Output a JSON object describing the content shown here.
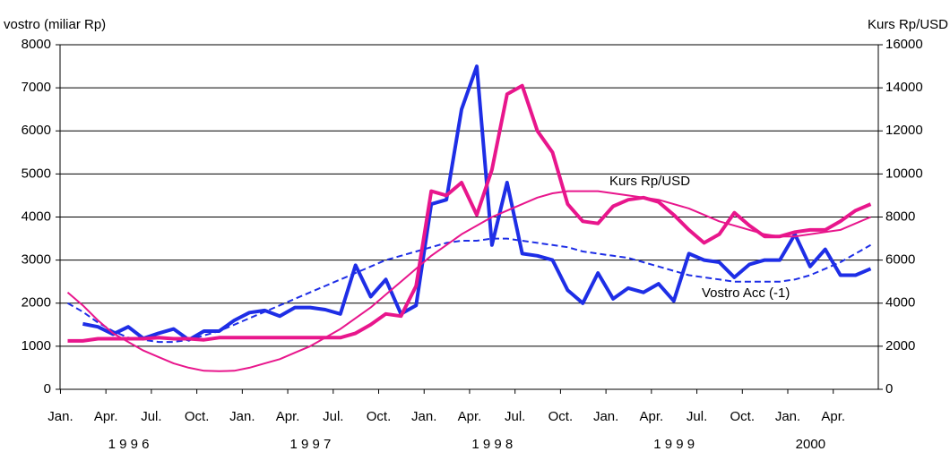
{
  "chart_data": {
    "type": "line",
    "y_label": "vostro (miliar Rp)",
    "y2_label": "Kurs Rp/USD",
    "categories": [
      "Jan.",
      null,
      null,
      "Apr.",
      null,
      null,
      "Jul.",
      null,
      null,
      "Oct.",
      null,
      null,
      "Jan.",
      null,
      null,
      "Apr.",
      null,
      null,
      "Jul.",
      null,
      null,
      "Oct.",
      null,
      null,
      "Jan.",
      null,
      null,
      "Apr.",
      null,
      null,
      "Jul.",
      null,
      null,
      "Oct.",
      null,
      null,
      "Jan.",
      null,
      null,
      "Apr.",
      null,
      null,
      "Jul.",
      null,
      null,
      "Oct.",
      null,
      null,
      "Jan.",
      null,
      null,
      "Apr.",
      null,
      null
    ],
    "years": [
      "1 9 9 6",
      "1 9 9 7",
      "1 9 9 8",
      "1 9 9 9",
      "2000"
    ],
    "ylim": [
      0,
      8000
    ],
    "yticks": [
      0,
      1000,
      2000,
      3000,
      4000,
      5000,
      6000,
      7000,
      8000
    ],
    "y2lim": [
      0,
      16000
    ],
    "y2ticks": [
      0,
      2000,
      4000,
      6000,
      8000,
      10000,
      12000,
      14000,
      16000
    ],
    "grid": true,
    "series": [
      {
        "color": "#1e2ee6",
        "width": 4,
        "dash": false,
        "values": [
          null,
          1520,
          1450,
          1280,
          1450,
          1180,
          1300,
          1400,
          1150,
          1350,
          1350,
          1600,
          1780,
          1830,
          1700,
          1900,
          1900,
          1850,
          1750,
          2880,
          2150,
          2550,
          1750,
          1950,
          4300,
          4400,
          6500,
          7500,
          3350,
          4800,
          3150,
          3100,
          3000,
          2300,
          2000,
          2700,
          2100,
          2350,
          2250,
          2450,
          2050,
          3150,
          3000,
          2950,
          2600,
          2900,
          3000,
          3000,
          3600,
          2850,
          3250,
          2650,
          2650,
          2800
        ]
      },
      {
        "name": "Vostro Acc (-1)",
        "color": "#1e2ee6",
        "width": 2,
        "dash": true,
        "values": [
          2000,
          1800,
          1550,
          1350,
          1200,
          1150,
          1100,
          1100,
          1150,
          1250,
          1350,
          1500,
          1650,
          1800,
          1950,
          2100,
          2250,
          2400,
          2550,
          2700,
          2850,
          3000,
          3100,
          3200,
          3300,
          3400,
          3450,
          3450,
          3500,
          3500,
          3450,
          3400,
          3350,
          3300,
          3200,
          3150,
          3100,
          3050,
          2950,
          2850,
          2750,
          2650,
          2600,
          2550,
          2500,
          2500,
          2500,
          2500,
          2550,
          2650,
          2800,
          2950,
          3150,
          3350
        ]
      },
      {
        "color": "#e8168c",
        "width": 4,
        "dash": false,
        "axis": "y2",
        "values": [
          2250,
          2250,
          2350,
          2350,
          2350,
          2350,
          2400,
          2350,
          2350,
          2300,
          2400,
          2400,
          2400,
          2400,
          2400,
          2400,
          2400,
          2400,
          2400,
          2600,
          3000,
          3500,
          3400,
          4800,
          9200,
          9000,
          9600,
          8100,
          10200,
          13700,
          14100,
          12000,
          11000,
          8600,
          7800,
          7700,
          8500,
          8800,
          8900,
          8700,
          8100,
          7400,
          6800,
          7200,
          8200,
          7600,
          7100,
          7100,
          7300,
          7400,
          7400,
          7800,
          8300,
          8600
        ]
      },
      {
        "name": "Kurs Rp/USD",
        "color": "#e8168c",
        "width": 2,
        "dash": false,
        "axis": "y2",
        "values": [
          4500,
          3900,
          3200,
          2600,
          2200,
          1800,
          1500,
          1200,
          1000,
          860,
          840,
          860,
          1000,
          1200,
          1400,
          1700,
          2000,
          2400,
          2800,
          3300,
          3800,
          4400,
          5000,
          5600,
          6200,
          6700,
          7200,
          7600,
          8000,
          8300,
          8600,
          8900,
          9100,
          9200,
          9200,
          9200,
          9100,
          9000,
          8900,
          8800,
          8600,
          8400,
          8100,
          7800,
          7600,
          7400,
          7200,
          7100,
          7100,
          7200,
          7300,
          7400,
          7700,
          8000
        ]
      }
    ]
  }
}
